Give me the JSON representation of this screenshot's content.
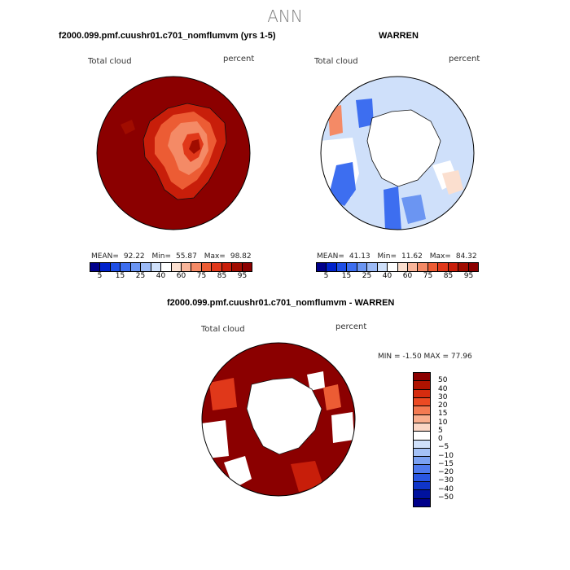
{
  "page": {
    "title": "ANN"
  },
  "panels": [
    {
      "title": "f2000.099.pmf.cuushr01.c701_nomflumvm (yrs 1-5)",
      "left_label": "Total cloud",
      "right_label": "percent",
      "stats": {
        "mean_label": "MEAN=",
        "mean": "92.22",
        "min_label": "Min=",
        "min": "55.87",
        "max_label": "Max=",
        "max": "98.82"
      }
    },
    {
      "title": "WARREN",
      "left_label": "Total cloud",
      "right_label": "percent",
      "stats": {
        "mean_label": "MEAN=",
        "mean": "41.13",
        "min_label": "Min=",
        "min": "11.62",
        "max_label": "Max=",
        "max": "84.32"
      }
    },
    {
      "title": "f2000.099.pmf.cuushr01.c701_nomflumvm - WARREN",
      "left_label": "Total cloud",
      "right_label": "percent",
      "stats_text": "MIN =   -1.50 MAX =  77.96"
    }
  ],
  "colorbar_top": {
    "colors": [
      "#00008b",
      "#0022cc",
      "#1f4fe6",
      "#3d6ef0",
      "#6b95f2",
      "#9cbaf6",
      "#cfe0fa",
      "#ffffff",
      "#fbdfcf",
      "#f9b59a",
      "#f48a66",
      "#ec5c34",
      "#e0381a",
      "#c81e0a",
      "#a00c00",
      "#8b0000"
    ],
    "labels": [
      "5",
      "15",
      "25",
      "40",
      "60",
      "75",
      "85",
      "95"
    ]
  },
  "colorbar_diff": {
    "colors": [
      "#8b0000",
      "#b01300",
      "#d62c0f",
      "#ec4a23",
      "#f47a52",
      "#f9ae8e",
      "#fbd7c6",
      "#ffffff",
      "#cfe0fa",
      "#a4c1f6",
      "#7ba1f2",
      "#4f7aee",
      "#2956e3",
      "#0f35c9",
      "#00129e",
      "#00008b"
    ],
    "labels": [
      "50",
      "40",
      "30",
      "20",
      "15",
      "10",
      "5",
      "0",
      "−5",
      "−10",
      "−15",
      "−20",
      "−30",
      "−40",
      "−50"
    ]
  }
}
